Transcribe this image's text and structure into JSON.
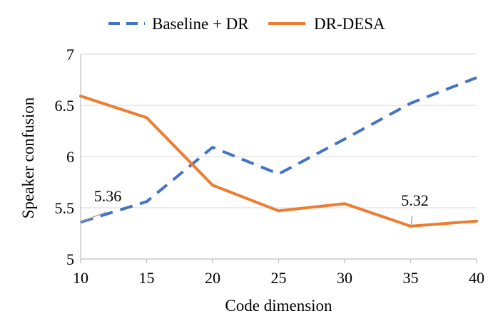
{
  "chart_data": {
    "type": "line",
    "title": "",
    "xlabel": "Code dimension",
    "ylabel": "Speaker confusion",
    "x": [
      10,
      15,
      20,
      25,
      30,
      35,
      40
    ],
    "x_tick_labels": [
      "10",
      "15",
      "20",
      "25",
      "30",
      "35",
      "40"
    ],
    "xlim": [
      10,
      40
    ],
    "ylim": [
      5,
      7
    ],
    "y_ticks": [
      5,
      5.5,
      6,
      6.5,
      7
    ],
    "y_tick_labels": [
      "5",
      "5.5",
      "6",
      "6.5",
      "7"
    ],
    "grid": true,
    "legend_position": "top",
    "series": [
      {
        "name": "Baseline + DR",
        "color": "#4472c4",
        "dash": "dashed",
        "values": [
          5.36,
          5.56,
          6.09,
          5.83,
          6.17,
          6.52,
          6.77
        ]
      },
      {
        "name": "DR-DESA",
        "color": "#ed7d31",
        "dash": "solid",
        "values": [
          6.59,
          6.38,
          5.72,
          5.47,
          5.54,
          5.32,
          5.37
        ]
      }
    ],
    "annotations": [
      {
        "series": 0,
        "index": 0,
        "text": "5.36"
      },
      {
        "series": 1,
        "index": 5,
        "text": "5.32"
      }
    ]
  }
}
